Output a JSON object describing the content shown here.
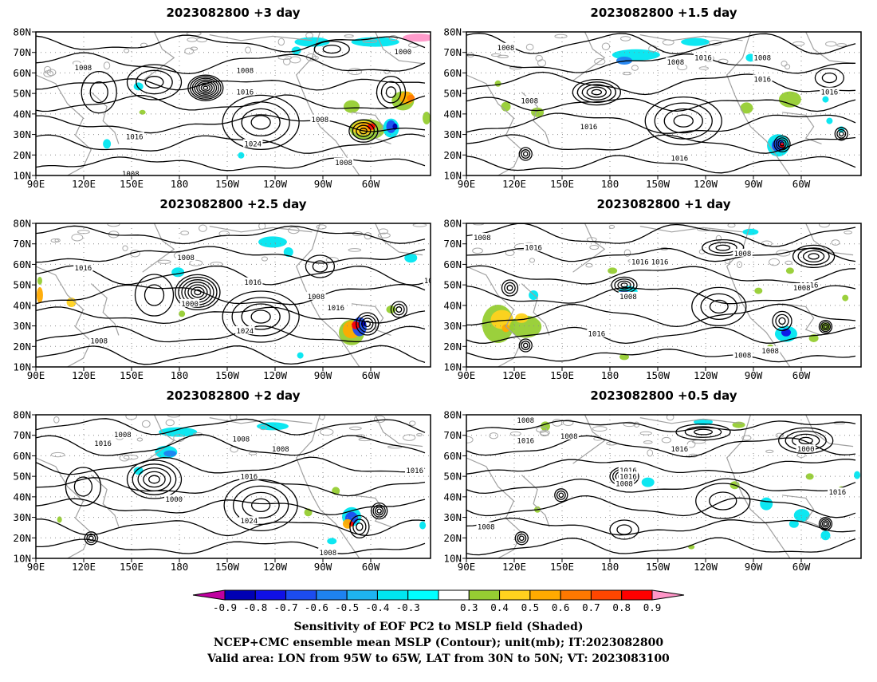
{
  "chart_data": {
    "type": "heatmap",
    "description_kind": "map panels",
    "panels": [
      {
        "title": "2023082800 +3 day",
        "contour_labels": [
          "1008",
          "1008",
          "1016",
          "1016",
          "1024",
          "1008",
          "1008",
          "1000",
          "1008"
        ]
      },
      {
        "title": "2023082800 +1.5 day",
        "contour_labels": [
          "1008",
          "1008",
          "1016",
          "1008",
          "1016",
          "1016",
          "1016",
          "1016",
          "1008"
        ]
      },
      {
        "title": "2023082800 +2.5 day",
        "contour_labels": [
          "1016",
          "1008",
          "1000",
          "1016",
          "1024",
          "1008",
          "1016",
          "1008",
          "101"
        ]
      },
      {
        "title": "2023082800 +1 day",
        "contour_labels": [
          "1008",
          "1016",
          "1016",
          "1016",
          "1008",
          "1008",
          "1016",
          "1016",
          "1008",
          "1008",
          "1008"
        ]
      },
      {
        "title": "2023082800 +2 day",
        "contour_labels": [
          "1016",
          "1008",
          "1008",
          "1008",
          "1016",
          "1000",
          "1024",
          "1008",
          "1016"
        ]
      },
      {
        "title": "2023082800 +0.5 day",
        "contour_labels": [
          "1008",
          "1016",
          "1008",
          "1016",
          "1016",
          "1008",
          "1000",
          "1016",
          "1016",
          "1008"
        ]
      }
    ],
    "x_ticks": [
      "90E",
      "120E",
      "150E",
      "180",
      "150W",
      "120W",
      "90W",
      "60W"
    ],
    "y_ticks": [
      "80N",
      "70N",
      "60N",
      "50N",
      "40N",
      "30N",
      "20N",
      "10N"
    ],
    "colorbar": {
      "labels": [
        "-0.9",
        "-0.8",
        "-0.7",
        "-0.6",
        "-0.5",
        "-0.4",
        "-0.3",
        "0.3",
        "0.4",
        "0.5",
        "0.6",
        "0.7",
        "0.8",
        "0.9"
      ],
      "colors": [
        "#c000a0",
        "#0000b4",
        "#1010e6",
        "#1c4cf0",
        "#1e82f0",
        "#1eb4f0",
        "#00e6f0",
        "#00ffff",
        "#ffffff",
        "#96cd32",
        "#ffd21e",
        "#ffaa00",
        "#ff7800",
        "#ff4600",
        "#ff0000",
        "#ff96c8"
      ]
    },
    "footer": [
      "Sensitivity of EOF PC2 to MSLP field (Shaded)",
      "NCEP+CMC ensemble mean MSLP (Contour); unit(mb); IT:2023082800",
      "Valid area: LON from 95W to 65W, LAT from 30N to 50N; VT: 2023083100"
    ]
  }
}
